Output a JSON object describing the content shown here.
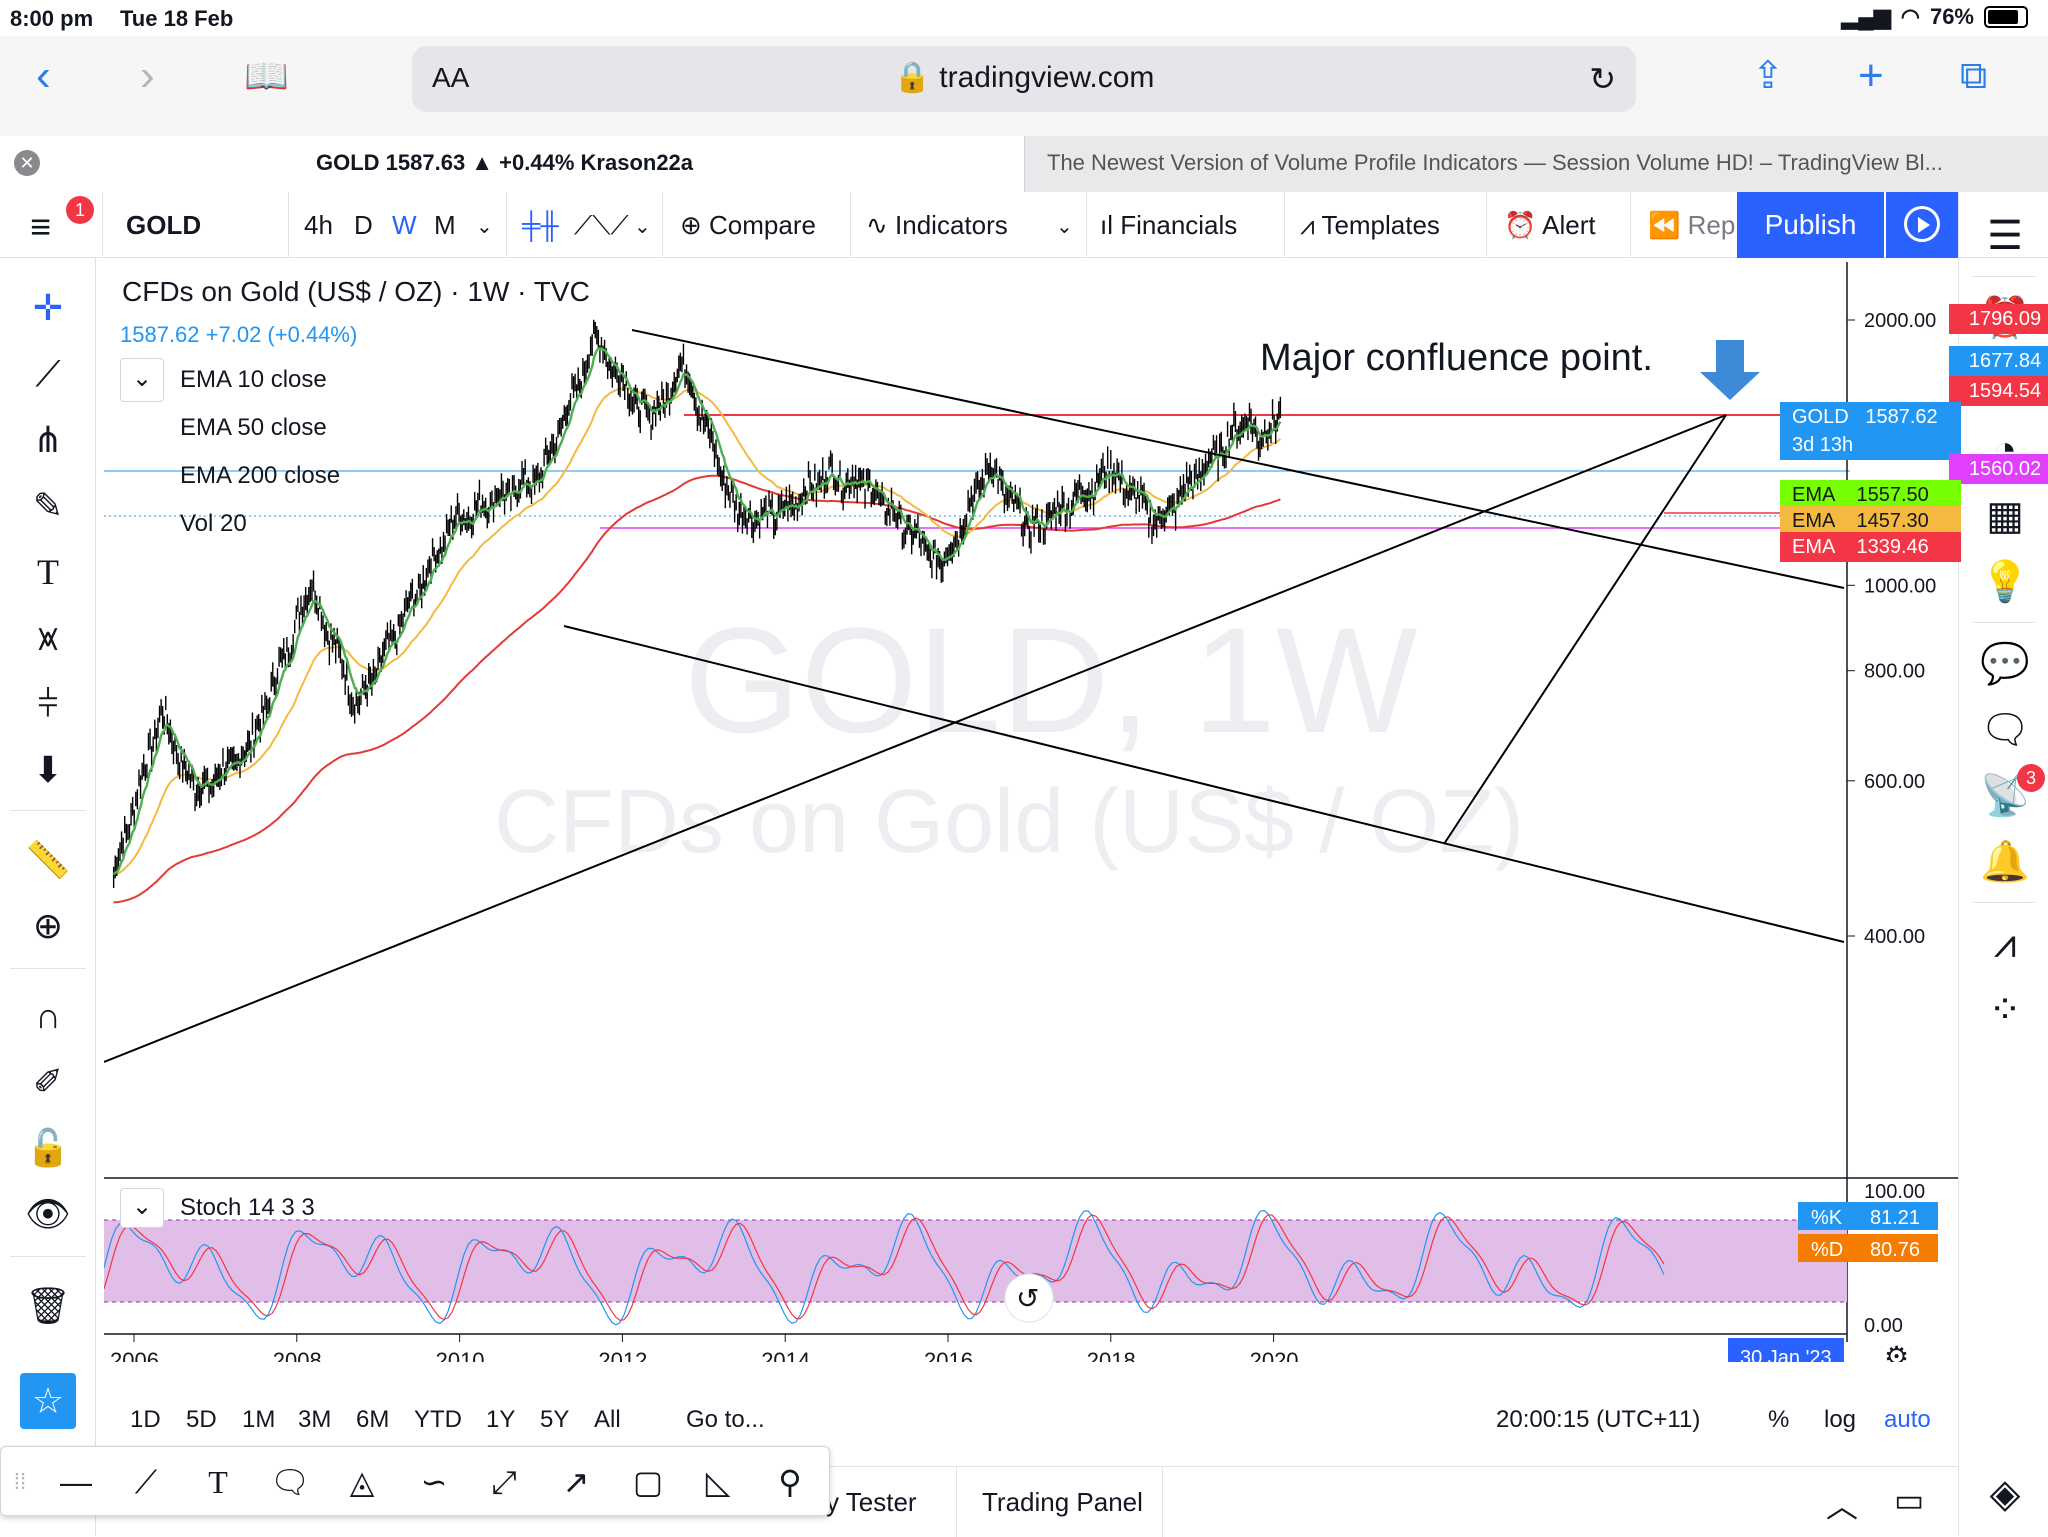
{
  "status": {
    "time": "8:00 pm",
    "date": "Tue 18 Feb",
    "battery": "76%"
  },
  "browser": {
    "aa": "AA",
    "url": "tradingview.com",
    "tab1": "GOLD 1587.63 ▲ +0.44% Krason22a",
    "tab2": "The Newest Version of Volume Profile Indicators — Session Volume HD! – TradingView Bl..."
  },
  "toolbar": {
    "menu_badge": "1",
    "symbol": "GOLD",
    "intervals": [
      "4h",
      "D",
      "W",
      "M"
    ],
    "active_interval": "W",
    "compare": "Compare",
    "indicators": "Indicators",
    "financials": "Financials",
    "templates": "Templates",
    "alert": "Alert",
    "replay": "Rep",
    "publish": "Publish"
  },
  "chart": {
    "title": "CFDs on Gold (US$ / OZ)",
    "interval": "1W",
    "exchange": "TVC",
    "price": "1587.62",
    "change": "+7.02 (+0.44%)",
    "indicators": [
      "EMA 10 close",
      "EMA 50 close",
      "EMA 200 close",
      "Vol 20"
    ],
    "watermark_main": "GOLD, 1W",
    "watermark_sub": "CFDs on Gold (US$ / OZ)",
    "annotation": "Major confluence point.",
    "price_axis": [
      "2000.00",
      "1000.00",
      "800.00",
      "600.00",
      "400.00"
    ],
    "price_labels": [
      {
        "text": "1796.09",
        "color": "#f23645"
      },
      {
        "text": "1677.84",
        "color": "#2196f3"
      },
      {
        "text": "1594.54",
        "color": "#f23645"
      },
      {
        "text": "GOLD   1587.62",
        "color": "#2196f3"
      },
      {
        "text": "3d 13h",
        "color": "#2196f3"
      },
      {
        "text": "1560.02",
        "color": "#e040fb"
      },
      {
        "text": "EMA    1557.50",
        "color": "#76ff03",
        "dark": true
      },
      {
        "text": "EMA    1457.30",
        "color": "#f5b942",
        "dark": true
      },
      {
        "text": "EMA    1339.46",
        "color": "#f23645"
      }
    ],
    "time_axis": [
      "2006",
      "2008",
      "2010",
      "2012",
      "2014",
      "2016",
      "2018",
      "2020"
    ],
    "cursor_date": "30 Jan '23",
    "stoch": {
      "label": "Stoch 14 3 3",
      "axis_top": "100.00",
      "axis_bottom": "0.00",
      "k_label": "%K",
      "k": "81.21",
      "d_label": "%D",
      "d": "80.76"
    },
    "colors": {
      "ema10": "#4caf50",
      "ema50": "#f5b942",
      "ema200": "#e53935",
      "stoch_k": "#2196f3",
      "stoch_d": "#f23645",
      "stoch_band": "#e1bee7"
    }
  },
  "chart_data": {
    "type": "line",
    "title": "CFDs on Gold (US$ / OZ)",
    "x_range": [
      "2005-09",
      "2023-01"
    ],
    "scale": "log",
    "ylim": [
      400,
      2000
    ],
    "series": [
      {
        "name": "GOLD",
        "x": [
          "2005-10",
          "2006-05",
          "2006-10",
          "2007-06",
          "2008-03",
          "2008-10",
          "2009-12",
          "2010-06",
          "2011-01",
          "2011-09",
          "2012-05",
          "2012-10",
          "2013-06",
          "2013-12",
          "2014-07",
          "2015-01",
          "2015-12",
          "2016-07",
          "2017-01",
          "2018-01",
          "2018-08",
          "2019-09",
          "2019-11",
          "2020-02"
        ],
        "values": [
          470,
          720,
          580,
          650,
          1000,
          730,
          1180,
          1250,
          1330,
          1900,
          1530,
          1780,
          1200,
          1200,
          1340,
          1300,
          1050,
          1370,
          1150,
          1350,
          1180,
          1550,
          1450,
          1587
        ]
      },
      {
        "name": "EMA 10 close",
        "value": 1557.5
      },
      {
        "name": "EMA 50 close",
        "value": 1457.3
      },
      {
        "name": "EMA 200 close",
        "value": 1339.46
      }
    ],
    "levels": [
      1796.09,
      1677.84,
      1594.54,
      1560.02
    ],
    "stoch": {
      "k": 81.21,
      "d": 80.76,
      "upper": 80,
      "lower": 20
    }
  },
  "range": {
    "buttons": [
      "1D",
      "5D",
      "1M",
      "3M",
      "6M",
      "YTD",
      "1Y",
      "5Y",
      "All"
    ],
    "goto": "Go to...",
    "clock": "20:00:15 (UTC+11)",
    "percent": "%",
    "log": "log",
    "auto": "auto"
  },
  "bottom": {
    "tester": "y Tester",
    "panel": "Trading Panel"
  },
  "right_badge": "3"
}
